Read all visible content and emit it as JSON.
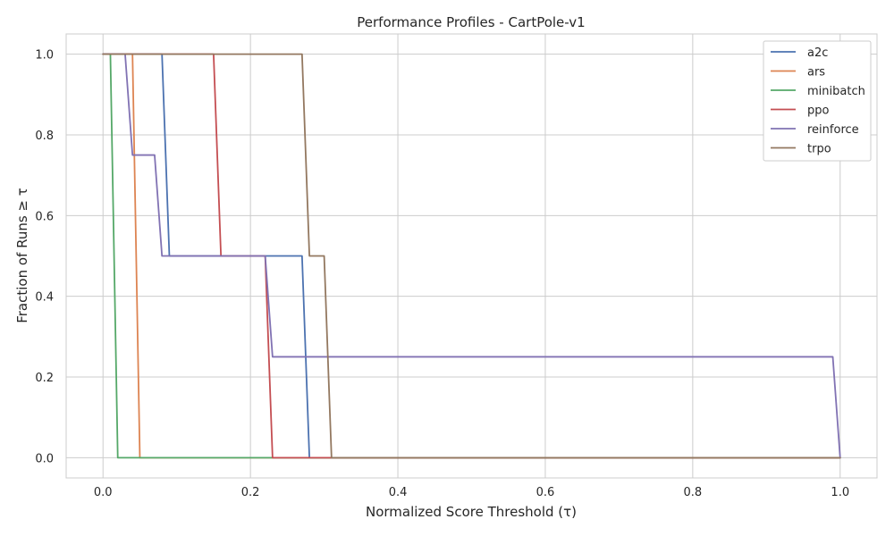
{
  "chart_data": {
    "type": "line",
    "title": "Performance Profiles - CartPole-v1",
    "xlabel": "Normalized Score Threshold (τ)",
    "ylabel": "Fraction of Runs ≥ τ",
    "xlim": [
      -0.05,
      1.05
    ],
    "ylim": [
      -0.05,
      1.05
    ],
    "xticks": [
      "0.0",
      "0.2",
      "0.4",
      "0.6",
      "0.8",
      "1.0"
    ],
    "yticks": [
      "0.0",
      "0.2",
      "0.4",
      "0.6",
      "0.8",
      "1.0"
    ],
    "grid": true,
    "legend_position": "top-right",
    "series": [
      {
        "name": "a2c",
        "color": "#4c72b0",
        "points": [
          [
            0,
            1.0
          ],
          [
            0.08,
            1.0
          ],
          [
            0.09,
            0.5
          ],
          [
            0.27,
            0.5
          ],
          [
            0.28,
            0.0
          ],
          [
            1.0,
            0.0
          ]
        ]
      },
      {
        "name": "ars",
        "color": "#dd8452",
        "points": [
          [
            0,
            1.0
          ],
          [
            0.04,
            1.0
          ],
          [
            0.05,
            0.0
          ],
          [
            1.0,
            0.0
          ]
        ]
      },
      {
        "name": "minibatch",
        "color": "#55a868",
        "points": [
          [
            0,
            1.0
          ],
          [
            0.01,
            1.0
          ],
          [
            0.02,
            0.0
          ],
          [
            1.0,
            0.0
          ]
        ]
      },
      {
        "name": "ppo",
        "color": "#c44e52",
        "points": [
          [
            0,
            1.0
          ],
          [
            0.15,
            1.0
          ],
          [
            0.16,
            0.5
          ],
          [
            0.22,
            0.5
          ],
          [
            0.23,
            0.0
          ],
          [
            1.0,
            0.0
          ]
        ]
      },
      {
        "name": "reinforce",
        "color": "#8172b3",
        "points": [
          [
            0,
            1.0
          ],
          [
            0.03,
            1.0
          ],
          [
            0.04,
            0.75
          ],
          [
            0.07,
            0.75
          ],
          [
            0.08,
            0.5
          ],
          [
            0.22,
            0.5
          ],
          [
            0.23,
            0.25
          ],
          [
            0.99,
            0.25
          ],
          [
            1.0,
            0.0
          ]
        ]
      },
      {
        "name": "trpo",
        "color": "#937860",
        "points": [
          [
            0,
            1.0
          ],
          [
            0.27,
            1.0
          ],
          [
            0.28,
            0.5
          ],
          [
            0.3,
            0.5
          ],
          [
            0.31,
            0.0
          ],
          [
            1.0,
            0.0
          ]
        ]
      }
    ]
  }
}
